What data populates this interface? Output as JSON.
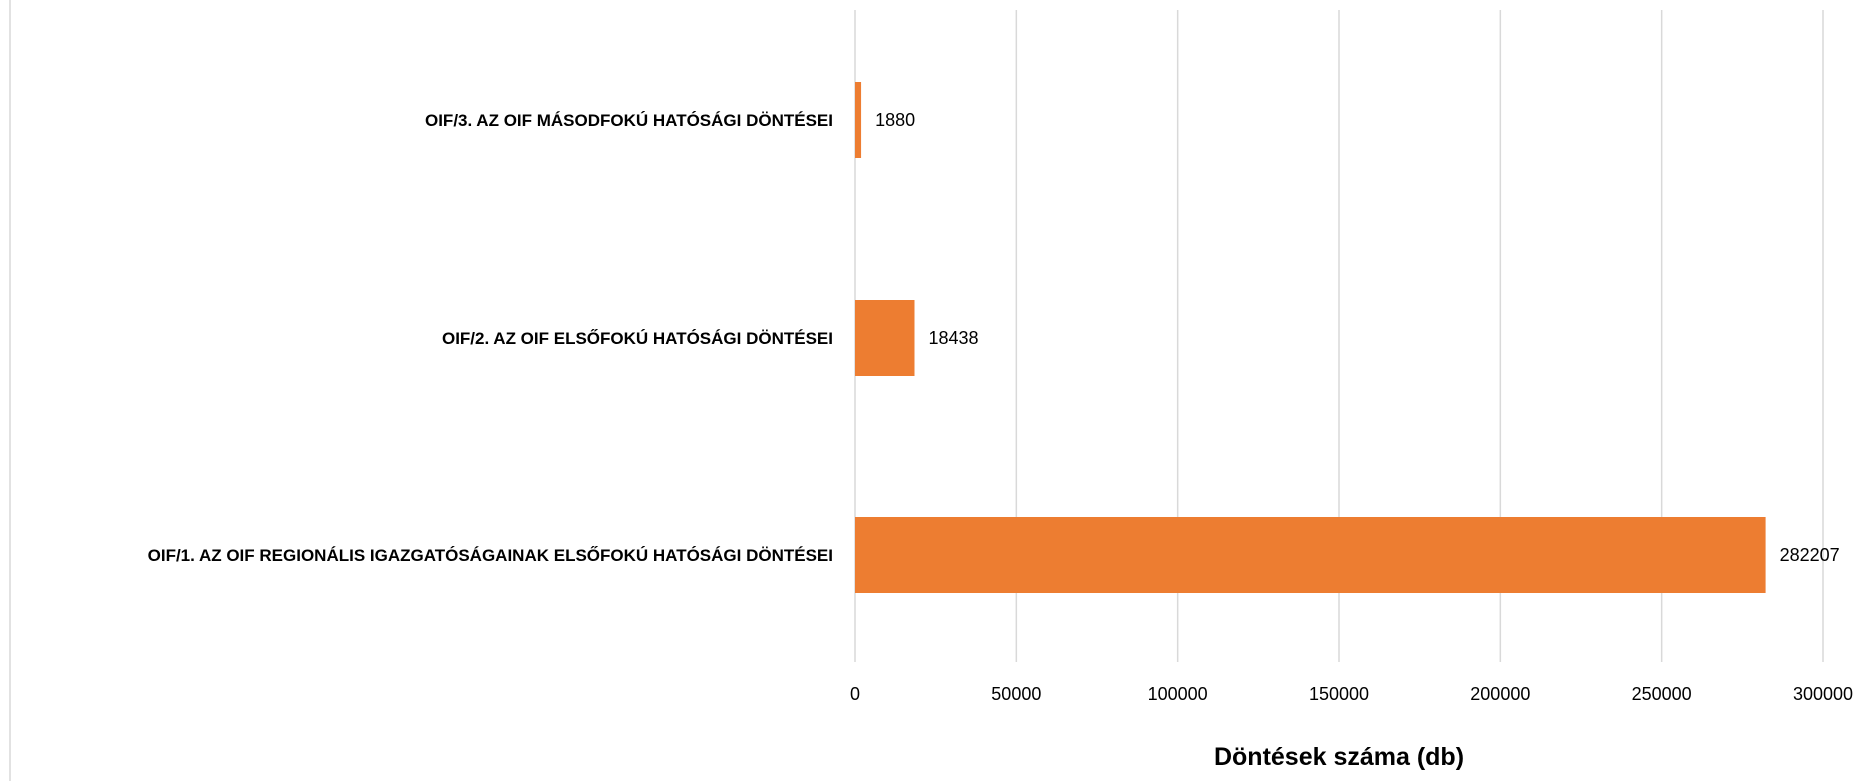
{
  "chart_data": {
    "type": "bar",
    "orientation": "horizontal",
    "categories": [
      "OIF/1. AZ OIF REGIONÁLIS IGAZGATÓSÁGAINAK ELSŐFOKÚ HATÓSÁGI DÖNTÉSEI",
      "OIF/2. AZ OIF ELSŐFOKÚ HATÓSÁGI DÖNTÉSEI",
      "OIF/3. AZ OIF MÁSODFOKÚ HATÓSÁGI DÖNTÉSEI"
    ],
    "values": [
      282207,
      18438,
      1880
    ],
    "xlabel": "Döntések száma (db)",
    "ylabel": "",
    "xlim": [
      0,
      300000
    ],
    "x_ticks": [
      "0",
      "50000",
      "100000",
      "150000",
      "200000",
      "250000",
      "300000"
    ],
    "data_labels": [
      "282207",
      "18438",
      "1880"
    ],
    "grid": "vertical",
    "legend": "none",
    "bar_color": "#ED7D31",
    "grid_color": "#D9D9D9"
  }
}
